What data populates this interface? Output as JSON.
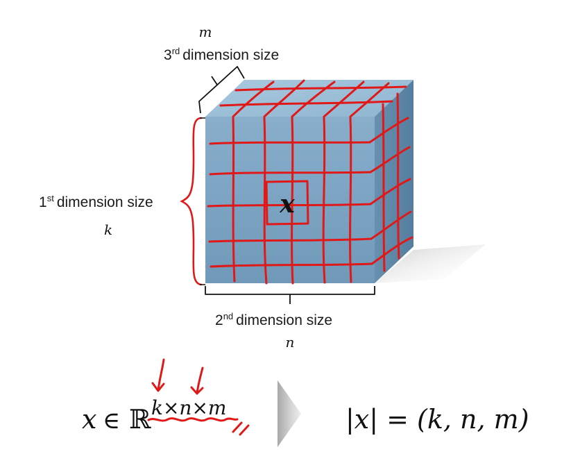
{
  "labels": {
    "third_dim_var": "m",
    "third_dim_text": "dimension size",
    "third_dim_ordinal": "3",
    "third_dim_suffix": "rd",
    "first_dim_text": "dimension size",
    "first_dim_ordinal": "1",
    "first_dim_suffix": "st",
    "first_dim_var": "k",
    "second_dim_text": "dimension size",
    "second_dim_ordinal": "2",
    "second_dim_suffix": "nd",
    "second_dim_var": "n",
    "cell_label": "x"
  },
  "formula": {
    "left_var": "x",
    "element_of": "∈",
    "real_set": "ℝ",
    "superscript": "k×n×m",
    "shape_expr": "|x| = (k, n, m)"
  },
  "colors": {
    "cube_front": "#7ea6c4",
    "cube_top": "#9bbfd8",
    "cube_side": "#5f89a8",
    "ink": "#e01818",
    "shadow": "#cfcfcf"
  },
  "icons": {
    "arrow": "play-triangle-icon"
  }
}
